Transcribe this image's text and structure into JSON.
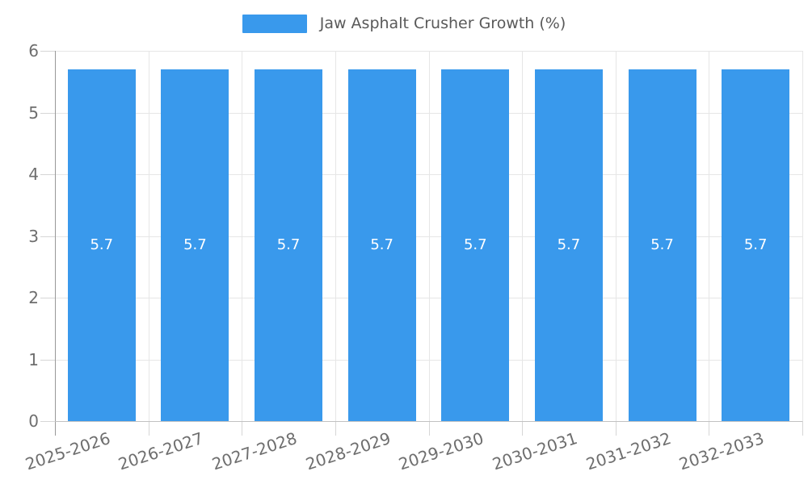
{
  "legend": {
    "label": "Jaw Asphalt Crusher Growth (%)",
    "swatch_color": "#3999ec"
  },
  "chart_data": {
    "type": "bar",
    "title": "Jaw Asphalt Crusher Growth (%)",
    "categories": [
      "2025-2026",
      "2026-2027",
      "2027-2028",
      "2028-2029",
      "2029-2030",
      "2030-2031",
      "2031-2032",
      "2032-2033"
    ],
    "values": [
      5.7,
      5.7,
      5.7,
      5.7,
      5.7,
      5.7,
      5.7,
      5.7
    ],
    "bar_labels": [
      "5.7",
      "5.7",
      "5.7",
      "5.7",
      "5.7",
      "5.7",
      "5.7",
      "5.7"
    ],
    "ylim": [
      0,
      6
    ],
    "yticks": [
      0,
      1,
      2,
      3,
      4,
      5,
      6
    ],
    "grid": true,
    "legend_position": "top",
    "xlabel": "",
    "ylabel": "",
    "colors": {
      "bar": "#3999ec",
      "bar_label": "#ffffff",
      "grid_line": "#e6e6e6",
      "tick_line": "#d6d6d6",
      "y_axis_line": "#999999",
      "x_axis_line": "#c2c2c2",
      "axis_text": "#6e6e6e",
      "legend_text": "#595959"
    }
  }
}
